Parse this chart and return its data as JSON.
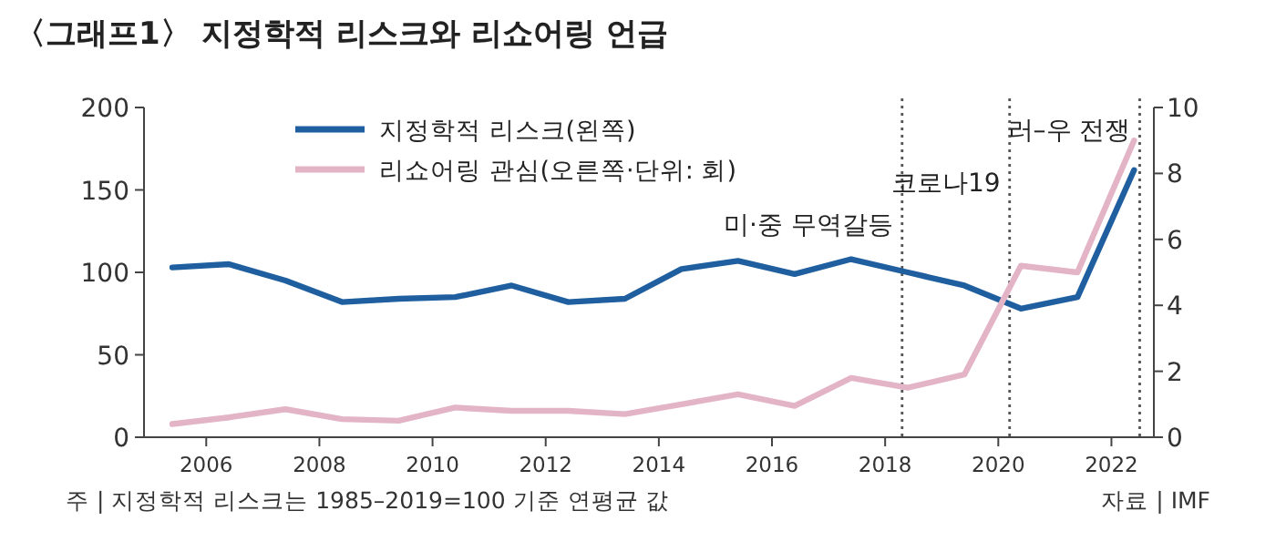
{
  "chart_data": {
    "type": "line",
    "title": "〈그래프1〉 지정학적 리스크와 리쇼어링 언급",
    "x": [
      2005.4,
      2006.4,
      2007.4,
      2008.4,
      2009.4,
      2010.4,
      2011.4,
      2012.4,
      2013.4,
      2014.4,
      2015.4,
      2016.4,
      2017.4,
      2018.4,
      2019.4,
      2020.4,
      2021.4,
      2022.4
    ],
    "series": [
      {
        "name": "지정학적 리스크(왼쪽)",
        "color": "#1f5fa0",
        "axis": "y",
        "values": [
          103,
          105,
          95,
          82,
          84,
          85,
          92,
          82,
          84,
          102,
          107,
          99,
          108,
          100,
          92,
          78,
          85,
          162
        ]
      },
      {
        "name": "리쇼어링 관심(오른쪽·단위: 회)",
        "color": "#e3b4c6",
        "axis": "y2",
        "values": [
          0.4,
          0.6,
          0.85,
          0.55,
          0.5,
          0.9,
          0.8,
          0.8,
          0.7,
          1.0,
          1.3,
          0.95,
          1.8,
          1.5,
          1.9,
          5.2,
          5.0,
          9.0
        ]
      }
    ],
    "xlim": [
      2004.9,
      2022.75
    ],
    "xticks": [
      2006,
      2008,
      2010,
      2012,
      2014,
      2016,
      2018,
      2020,
      2022
    ],
    "ylim": [
      0,
      200
    ],
    "yticks": [
      0,
      50,
      100,
      150,
      200
    ],
    "y2lim": [
      0,
      10
    ],
    "y2ticks": [
      0,
      2,
      4,
      6,
      8,
      10
    ],
    "ref_lines": [
      {
        "axis": "x",
        "value": 2018.3,
        "label": "미·중 무역갈등",
        "color": "#555555",
        "line_style": "dotted"
      },
      {
        "axis": "x",
        "value": 2020.2,
        "label": "코로나19",
        "color": "#555555",
        "line_style": "dotted"
      },
      {
        "axis": "x",
        "value": 2022.5,
        "label": "러–우 전쟁",
        "color": "#555555",
        "line_style": "dotted"
      }
    ],
    "legend": "top left",
    "marker": "none",
    "line_style": "solid",
    "grid": false,
    "annotations": [
      "주 | 지정학적 리스크는 1985–2019=100 기준 연평균 값",
      "자료 | IMF"
    ]
  }
}
